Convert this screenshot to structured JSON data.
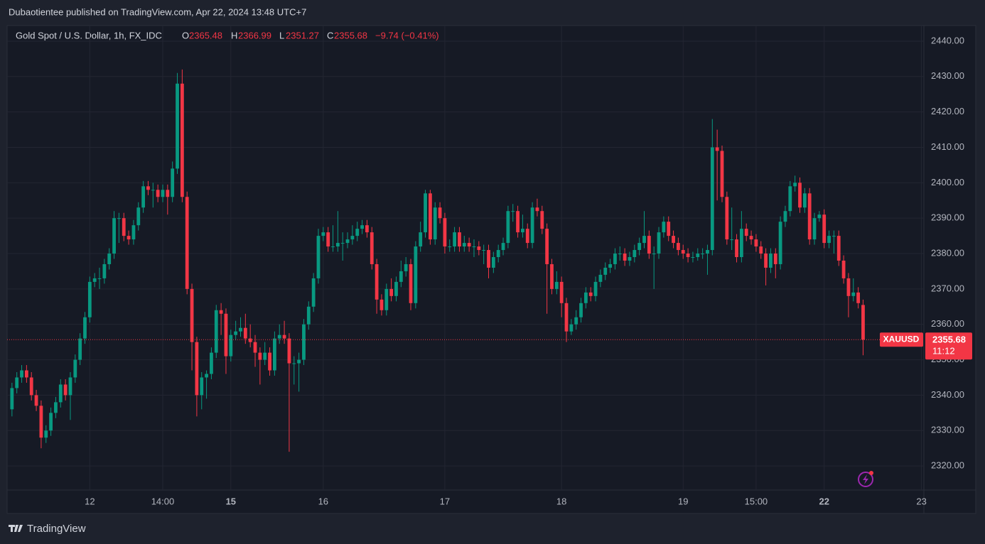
{
  "chart_data": {
    "type": "candlestick",
    "publisher_note": "Dubaotientee published on TradingView.com, Apr 22, 2024 13:48 UTC+7",
    "title": "Gold Spot / U.S. Dollar, 1h, FX_IDC",
    "ohlc_letters": [
      "O",
      "H",
      "L",
      "C"
    ],
    "change_label": "−9.74 (−0.41%)",
    "symbol_tag": "XAUUSD",
    "countdown": "11:12",
    "branding": "TradingView",
    "up_color": "#089981",
    "down_color": "#f23645",
    "grid": true,
    "xlim": [
      -1,
      187.5
    ],
    "xticks": [
      {
        "value": 16,
        "label": "12"
      },
      {
        "value": 31,
        "label": "14:00"
      },
      {
        "value": 45,
        "label": "15"
      },
      {
        "value": 64,
        "label": "16"
      },
      {
        "value": 89,
        "label": "17"
      },
      {
        "value": 113,
        "label": "18"
      },
      {
        "value": 138,
        "label": "19"
      },
      {
        "value": 153,
        "label": "15:00"
      },
      {
        "value": 167,
        "label": "22"
      },
      {
        "value": 187,
        "label": "23"
      }
    ],
    "ylim": [
      2313.2,
      2444
    ],
    "yticks": [
      {
        "value": 2320,
        "label": "2320.00"
      },
      {
        "value": 2330,
        "label": "2330.00"
      },
      {
        "value": 2340,
        "label": "2340.00"
      },
      {
        "value": 2350,
        "label": "2350.00"
      },
      {
        "value": 2360,
        "label": "2360.00"
      },
      {
        "value": 2370,
        "label": "2370.00"
      },
      {
        "value": 2380,
        "label": "2380.00"
      },
      {
        "value": 2390,
        "label": "2390.00"
      },
      {
        "value": 2400,
        "label": "2400.00"
      },
      {
        "value": 2410,
        "label": "2410.00"
      },
      {
        "value": 2420,
        "label": "2420.00"
      },
      {
        "value": 2430,
        "label": "2430.00"
      },
      {
        "value": 2440,
        "label": "2440.00"
      }
    ],
    "ohlc": [
      [
        2336,
        2343.5,
        2334,
        2342
      ],
      [
        2342,
        2346.5,
        2340.5,
        2345
      ],
      [
        2345,
        2348.5,
        2343.5,
        2347
      ],
      [
        2347,
        2348.5,
        2343.5,
        2345
      ],
      [
        2345,
        2346.5,
        2338.5,
        2340
      ],
      [
        2340,
        2341.5,
        2335.5,
        2337
      ],
      [
        2337,
        2338.5,
        2325,
        2328
      ],
      [
        2328,
        2331.5,
        2326.5,
        2330
      ],
      [
        2330,
        2336.5,
        2328.5,
        2335
      ],
      [
        2335,
        2339.5,
        2333.5,
        2338
      ],
      [
        2338,
        2344.5,
        2336.5,
        2343
      ],
      [
        2343,
        2344.5,
        2338.5,
        2340
      ],
      [
        2340,
        2346.5,
        2333,
        2345
      ],
      [
        2345,
        2351.5,
        2343.5,
        2350
      ],
      [
        2350,
        2357.5,
        2348.5,
        2356
      ],
      [
        2356,
        2363.5,
        2354.5,
        2362
      ],
      [
        2362,
        2373.5,
        2360.5,
        2372
      ],
      [
        2372,
        2374.5,
        2370.5,
        2373
      ],
      [
        2373,
        2376,
        2370,
        2373
      ],
      [
        2373,
        2378.5,
        2371.5,
        2377
      ],
      [
        2377,
        2381.5,
        2375.5,
        2380
      ],
      [
        2380,
        2392,
        2378.5,
        2390
      ],
      [
        2390,
        2391.5,
        2383,
        2390
      ],
      [
        2390,
        2391.5,
        2383.5,
        2385
      ],
      [
        2385,
        2386.5,
        2382.5,
        2384
      ],
      [
        2384,
        2389.5,
        2382.5,
        2388
      ],
      [
        2388,
        2394.5,
        2386.5,
        2393
      ],
      [
        2393,
        2400.5,
        2391.5,
        2399
      ],
      [
        2399,
        2400.5,
        2396.5,
        2398
      ],
      [
        2398,
        2400,
        2393,
        2398
      ],
      [
        2398,
        2399.5,
        2394.5,
        2396
      ],
      [
        2396,
        2399.5,
        2394.5,
        2398
      ],
      [
        2398,
        2399.5,
        2391,
        2396
      ],
      [
        2396,
        2406,
        2394.5,
        2404
      ],
      [
        2404,
        2431,
        2402.5,
        2428
      ],
      [
        2428,
        2432,
        2394.5,
        2396
      ],
      [
        2396,
        2397.5,
        2368.5,
        2370
      ],
      [
        2370,
        2371.5,
        2347,
        2355
      ],
      [
        2355,
        2356.5,
        2334,
        2340
      ],
      [
        2340,
        2346.5,
        2336,
        2345
      ],
      [
        2345,
        2347,
        2339,
        2346
      ],
      [
        2346,
        2353.5,
        2344.5,
        2352
      ],
      [
        2352,
        2365.5,
        2350.5,
        2364
      ],
      [
        2364,
        2366,
        2357,
        2363
      ],
      [
        2363,
        2364.5,
        2346,
        2351
      ],
      [
        2351,
        2358.5,
        2349.5,
        2357
      ],
      [
        2357,
        2361,
        2355.5,
        2358
      ],
      [
        2358,
        2362,
        2356.5,
        2359
      ],
      [
        2359,
        2363,
        2354.5,
        2356
      ],
      [
        2356,
        2360,
        2353.5,
        2355
      ],
      [
        2355,
        2357,
        2348,
        2352
      ],
      [
        2352,
        2353.5,
        2343,
        2350
      ],
      [
        2350,
        2355,
        2348.5,
        2352
      ],
      [
        2352,
        2353.5,
        2345.5,
        2347
      ],
      [
        2347,
        2358,
        2345.5,
        2356
      ],
      [
        2356,
        2360,
        2354.5,
        2357
      ],
      [
        2357,
        2361,
        2354.5,
        2356
      ],
      [
        2356,
        2357.5,
        2324,
        2349
      ],
      [
        2349,
        2351,
        2343,
        2349
      ],
      [
        2349,
        2352,
        2341,
        2350
      ],
      [
        2350,
        2361.5,
        2348.5,
        2360
      ],
      [
        2360,
        2366.5,
        2358.5,
        2365
      ],
      [
        2365,
        2374.5,
        2363.5,
        2373
      ],
      [
        2373,
        2387,
        2371.5,
        2385
      ],
      [
        2385,
        2387.5,
        2383.5,
        2386
      ],
      [
        2386,
        2387.5,
        2380.5,
        2382
      ],
      [
        2382,
        2388,
        2380.5,
        2382
      ],
      [
        2382,
        2392,
        2380.5,
        2383
      ],
      [
        2383,
        2386,
        2378,
        2383
      ],
      [
        2383,
        2386,
        2381.5,
        2384
      ],
      [
        2384,
        2388,
        2382.5,
        2385
      ],
      [
        2385,
        2389,
        2383.5,
        2387
      ],
      [
        2387,
        2389.5,
        2385.5,
        2388
      ],
      [
        2388,
        2389.5,
        2384.5,
        2386
      ],
      [
        2386,
        2387.5,
        2375.5,
        2377
      ],
      [
        2377,
        2378.5,
        2363,
        2367
      ],
      [
        2367,
        2368.5,
        2362.5,
        2364
      ],
      [
        2364,
        2371.5,
        2362.5,
        2370
      ],
      [
        2370,
        2373,
        2366.5,
        2368
      ],
      [
        2368,
        2373.5,
        2366.5,
        2372
      ],
      [
        2372,
        2378,
        2370.5,
        2375
      ],
      [
        2375,
        2379,
        2373.5,
        2377
      ],
      [
        2377,
        2378.5,
        2364,
        2366
      ],
      [
        2366,
        2383.5,
        2364.5,
        2382
      ],
      [
        2382,
        2389,
        2380.5,
        2386
      ],
      [
        2386,
        2398,
        2384.5,
        2397
      ],
      [
        2397,
        2398,
        2382.5,
        2384
      ],
      [
        2384,
        2394.5,
        2382.5,
        2393
      ],
      [
        2393,
        2394.5,
        2388.5,
        2390
      ],
      [
        2390,
        2391.5,
        2380,
        2382
      ],
      [
        2382,
        2384,
        2380.5,
        2382
      ],
      [
        2382,
        2387.5,
        2380.5,
        2386
      ],
      [
        2386,
        2387.5,
        2380.5,
        2382
      ],
      [
        2382,
        2385,
        2380.5,
        2383
      ],
      [
        2383,
        2384.5,
        2380.5,
        2382
      ],
      [
        2382,
        2384,
        2379,
        2382
      ],
      [
        2382,
        2383.5,
        2379.5,
        2381
      ],
      [
        2381,
        2382.5,
        2377,
        2381
      ],
      [
        2381,
        2382.5,
        2373,
        2376
      ],
      [
        2376,
        2380.5,
        2374.5,
        2379
      ],
      [
        2379,
        2382.5,
        2377.5,
        2381
      ],
      [
        2381,
        2384.5,
        2379.5,
        2383
      ],
      [
        2383,
        2393.5,
        2381.5,
        2392
      ],
      [
        2392,
        2394,
        2389,
        2392
      ],
      [
        2392,
        2393.5,
        2384.5,
        2386
      ],
      [
        2386,
        2391,
        2384.5,
        2387
      ],
      [
        2387,
        2388.5,
        2381.5,
        2383
      ],
      [
        2383,
        2394.5,
        2381.5,
        2393
      ],
      [
        2393,
        2395.5,
        2390.5,
        2392
      ],
      [
        2392,
        2393.5,
        2385.5,
        2387
      ],
      [
        2387,
        2388.5,
        2363,
        2377
      ],
      [
        2377,
        2378.5,
        2368.5,
        2370
      ],
      [
        2370,
        2375,
        2368.5,
        2372
      ],
      [
        2372,
        2373.5,
        2362,
        2366
      ],
      [
        2366,
        2367.5,
        2355,
        2358
      ],
      [
        2358,
        2361.5,
        2357,
        2360
      ],
      [
        2360,
        2364,
        2358.5,
        2362
      ],
      [
        2362,
        2367.5,
        2360.5,
        2366
      ],
      [
        2366,
        2370.5,
        2364.5,
        2369
      ],
      [
        2369,
        2370.5,
        2366.5,
        2368
      ],
      [
        2368,
        2373.5,
        2366.5,
        2372
      ],
      [
        2372,
        2375.5,
        2370.5,
        2374
      ],
      [
        2374,
        2377.5,
        2372.5,
        2376
      ],
      [
        2376,
        2378.5,
        2374.5,
        2377
      ],
      [
        2377,
        2381.5,
        2375.5,
        2380
      ],
      [
        2380,
        2382,
        2378,
        2380
      ],
      [
        2380,
        2381.5,
        2376.5,
        2378
      ],
      [
        2378,
        2380.5,
        2376.5,
        2379
      ],
      [
        2379,
        2382.5,
        2377.5,
        2381
      ],
      [
        2381,
        2384.5,
        2379.5,
        2383
      ],
      [
        2383,
        2392,
        2381.5,
        2385
      ],
      [
        2385,
        2386.5,
        2378.5,
        2380
      ],
      [
        2380,
        2382,
        2370,
        2380
      ],
      [
        2380,
        2387.5,
        2378.5,
        2386
      ],
      [
        2386,
        2390.5,
        2384.5,
        2389
      ],
      [
        2389,
        2390.5,
        2383.5,
        2385
      ],
      [
        2385,
        2386.5,
        2381.5,
        2383
      ],
      [
        2383,
        2384.5,
        2379.5,
        2381
      ],
      [
        2381,
        2382.5,
        2378.5,
        2380
      ],
      [
        2380,
        2381.5,
        2377.5,
        2379
      ],
      [
        2379,
        2380.5,
        2377.5,
        2379
      ],
      [
        2379,
        2381.5,
        2378,
        2380
      ],
      [
        2380,
        2381.5,
        2378.5,
        2380
      ],
      [
        2380,
        2382.5,
        2374,
        2381
      ],
      [
        2381,
        2418,
        2379.5,
        2410
      ],
      [
        2410,
        2415,
        2395,
        2409
      ],
      [
        2409,
        2410.5,
        2394.5,
        2396
      ],
      [
        2396,
        2397.5,
        2382.5,
        2384
      ],
      [
        2384,
        2393,
        2381,
        2384
      ],
      [
        2384,
        2385.5,
        2377.5,
        2379
      ],
      [
        2379,
        2392,
        2377.5,
        2387
      ],
      [
        2387,
        2388.5,
        2383.5,
        2385
      ],
      [
        2385,
        2386.5,
        2382.5,
        2384
      ],
      [
        2384,
        2385.5,
        2380.5,
        2382
      ],
      [
        2382,
        2383.5,
        2378.5,
        2380
      ],
      [
        2380,
        2381.5,
        2371,
        2376
      ],
      [
        2376,
        2381.5,
        2374.5,
        2380
      ],
      [
        2380,
        2381.5,
        2373,
        2377
      ],
      [
        2377,
        2390.5,
        2375.5,
        2389
      ],
      [
        2389,
        2393.5,
        2387.5,
        2392
      ],
      [
        2392,
        2400.5,
        2390.5,
        2399
      ],
      [
        2399,
        2402,
        2397.5,
        2400
      ],
      [
        2400,
        2401.5,
        2391.5,
        2393
      ],
      [
        2393,
        2398.5,
        2391.5,
        2397
      ],
      [
        2397,
        2398.5,
        2382.5,
        2384
      ],
      [
        2384,
        2391.5,
        2382.5,
        2390
      ],
      [
        2390,
        2392,
        2389,
        2391
      ],
      [
        2391,
        2392.5,
        2381.5,
        2383
      ],
      [
        2383,
        2386.5,
        2381.5,
        2385
      ],
      [
        2385,
        2386.5,
        2380,
        2385
      ],
      [
        2385,
        2386.5,
        2376.5,
        2378
      ],
      [
        2378,
        2379.5,
        2371.5,
        2373
      ],
      [
        2373,
        2374.5,
        2362,
        2368
      ],
      [
        2368,
        2373,
        2366.5,
        2369
      ],
      [
        2369,
        2370.5,
        2364.5,
        2366
      ],
      [
        2365.48,
        2366.99,
        2351.27,
        2355.68
      ]
    ]
  }
}
